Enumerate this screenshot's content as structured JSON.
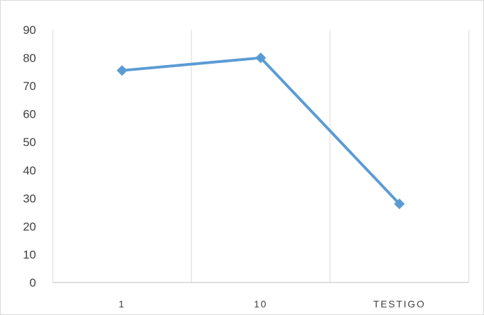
{
  "chart_data": {
    "type": "line",
    "title": "",
    "xlabel": "",
    "ylabel": "",
    "categories": [
      "1",
      "10",
      "TESTIGO"
    ],
    "series": [
      {
        "values": [
          75.5,
          80,
          28
        ]
      }
    ],
    "ylim": [
      0,
      90
    ],
    "y_ticks": [
      0,
      10,
      20,
      30,
      40,
      50,
      60,
      70,
      80,
      90
    ],
    "grid": "vertical",
    "legend": "none",
    "marker": "diamond",
    "colors": {
      "line": "#5b9bd5",
      "marker": "#5b9bd5",
      "gridline": "#d9d9d9",
      "axis": "#bfbfbf",
      "border": "#d9d9d9"
    }
  }
}
